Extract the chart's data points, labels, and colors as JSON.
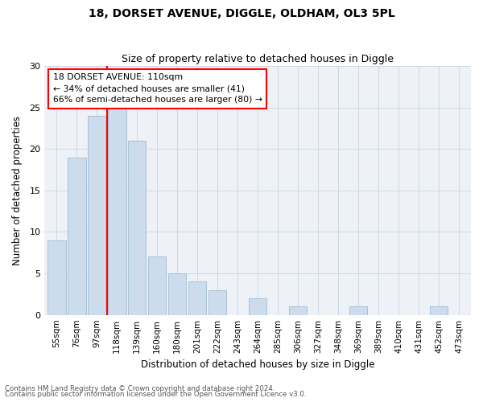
{
  "title": "18, DORSET AVENUE, DIGGLE, OLDHAM, OL3 5PL",
  "subtitle": "Size of property relative to detached houses in Diggle",
  "xlabel": "Distribution of detached houses by size in Diggle",
  "ylabel": "Number of detached properties",
  "categories": [
    "55sqm",
    "76sqm",
    "97sqm",
    "118sqm",
    "139sqm",
    "160sqm",
    "180sqm",
    "201sqm",
    "222sqm",
    "243sqm",
    "264sqm",
    "285sqm",
    "306sqm",
    "327sqm",
    "348sqm",
    "369sqm",
    "389sqm",
    "410sqm",
    "431sqm",
    "452sqm",
    "473sqm"
  ],
  "values": [
    9,
    19,
    24,
    25,
    21,
    7,
    5,
    4,
    3,
    0,
    2,
    0,
    1,
    0,
    0,
    1,
    0,
    0,
    0,
    1,
    0
  ],
  "bar_color": "#ccdcec",
  "bar_edge_color": "#a0bcd4",
  "vline_x_index": 2,
  "vline_color": "red",
  "annotation_text": "18 DORSET AVENUE: 110sqm\n← 34% of detached houses are smaller (41)\n66% of semi-detached houses are larger (80) →",
  "annotation_box_color": "white",
  "annotation_box_edge": "red",
  "ylim": [
    0,
    30
  ],
  "yticks": [
    0,
    5,
    10,
    15,
    20,
    25,
    30
  ],
  "footer1": "Contains HM Land Registry data © Crown copyright and database right 2024.",
  "footer2": "Contains public sector information licensed under the Open Government Licence v3.0.",
  "bg_color": "#eef2f7",
  "grid_color": "#c8d4e0",
  "title_fontsize": 10,
  "subtitle_fontsize": 9,
  "bar_width": 0.9
}
